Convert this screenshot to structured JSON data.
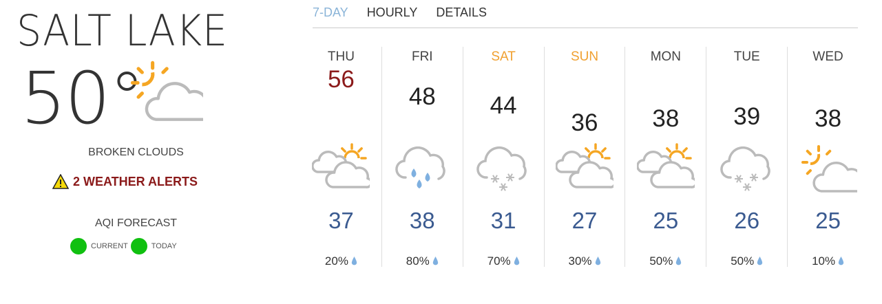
{
  "current": {
    "city": "SALT LAKE",
    "temperature": "50°",
    "icon": "partly-cloudy-sun-icon",
    "condition": "BROKEN CLOUDS",
    "alerts": "2 WEATHER ALERTS",
    "aqi_title": "AQI FORECAST",
    "aqi": [
      {
        "label": "CURRENT",
        "color": "#10c010"
      },
      {
        "label": "TODAY",
        "color": "#10c010"
      }
    ]
  },
  "tabs": [
    {
      "label": "7-DAY",
      "active": true
    },
    {
      "label": "HOURLY"
    },
    {
      "label": "DETAILS"
    }
  ],
  "colors": {
    "accent": "#8ab4d8",
    "today_high": "#8b1a1a",
    "weekend": "#f0a030",
    "low": "#3a5a90",
    "alert": "#8b1a1a"
  },
  "forecast": [
    {
      "day": "THU",
      "high": "56",
      "low": "37",
      "precip": "20%",
      "icon": "partly-cloudy-icon",
      "today": true
    },
    {
      "day": "FRI",
      "high": "48",
      "low": "38",
      "precip": "80%",
      "icon": "rain-icon"
    },
    {
      "day": "SAT",
      "high": "44",
      "low": "31",
      "precip": "70%",
      "icon": "snow-icon",
      "weekend": true
    },
    {
      "day": "SUN",
      "high": "36",
      "low": "27",
      "precip": "30%",
      "icon": "partly-cloudy-icon",
      "weekend": true
    },
    {
      "day": "MON",
      "high": "38",
      "low": "25",
      "precip": "50%",
      "icon": "partly-cloudy-icon"
    },
    {
      "day": "TUE",
      "high": "39",
      "low": "26",
      "precip": "50%",
      "icon": "snow-icon"
    },
    {
      "day": "WED",
      "high": "38",
      "low": "25",
      "precip": "10%",
      "icon": "partly-cloudy-sun-icon"
    }
  ]
}
